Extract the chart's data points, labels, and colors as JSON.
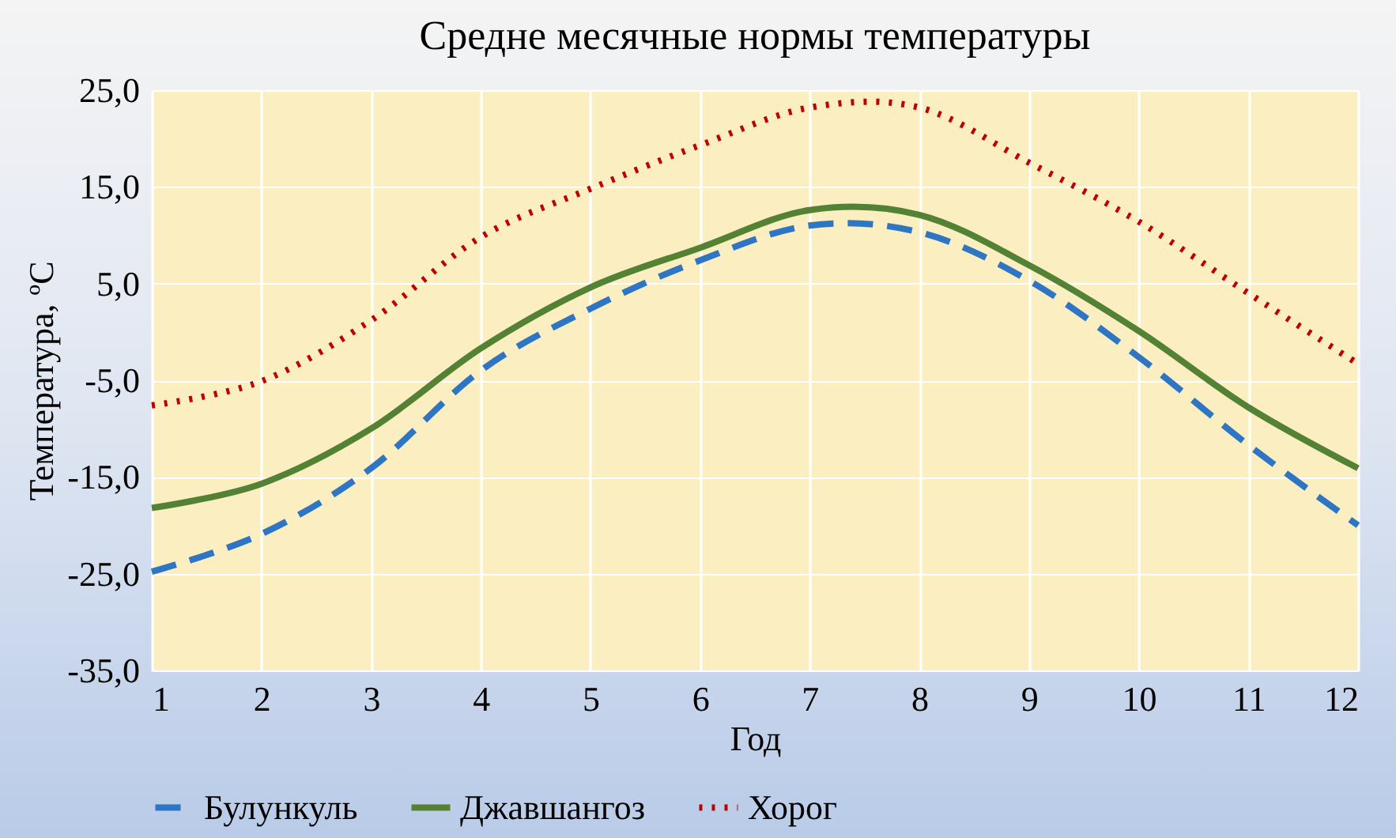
{
  "chart_data": {
    "type": "line",
    "title": "Средне месячные нормы температуры",
    "xlabel": "Год",
    "ylabel": "Температура, ºС",
    "x": [
      1,
      2,
      3,
      4,
      5,
      6,
      7,
      8,
      9,
      10,
      11,
      12
    ],
    "series": [
      {
        "name": "Булункуль",
        "color": "#2e75c4",
        "line_style": "dashed",
        "values": [
          -24.8,
          -20.9,
          -14.1,
          -4,
          2.4,
          7.4,
          11,
          10.3,
          5.3,
          -2.6,
          -11.7,
          -20
        ]
      },
      {
        "name": "Джавшангоз",
        "color": "#548235",
        "line_style": "solid",
        "values": [
          -18.2,
          -15.7,
          -10,
          -1.7,
          4.6,
          8.7,
          12.6,
          12.1,
          6.9,
          0.1,
          -7.8,
          -14.1
        ]
      },
      {
        "name": "Хорог",
        "color": "#c00000",
        "line_style": "dotted",
        "values": [
          -7.6,
          -5.1,
          1.2,
          9.8,
          14.8,
          19.3,
          23.2,
          23.2,
          17.5,
          11.4,
          4,
          -3.3
        ]
      }
    ],
    "xlim": [
      1,
      12
    ],
    "xticks": [
      1,
      2,
      3,
      4,
      5,
      6,
      7,
      8,
      9,
      10,
      11,
      12
    ],
    "ylim": [
      -35,
      25
    ],
    "yticks": [
      {
        "value": -35,
        "label": "-35,0"
      },
      {
        "value": -25,
        "label": "-25,0"
      },
      {
        "value": -15,
        "label": "-15,0"
      },
      {
        "value": -5,
        "label": "-5,0"
      },
      {
        "value": 5,
        "label": "5,0"
      },
      {
        "value": 15,
        "label": "15,0"
      },
      {
        "value": 25,
        "label": "25,0"
      }
    ],
    "grid": true,
    "legend": "bottom",
    "marker": "none"
  }
}
